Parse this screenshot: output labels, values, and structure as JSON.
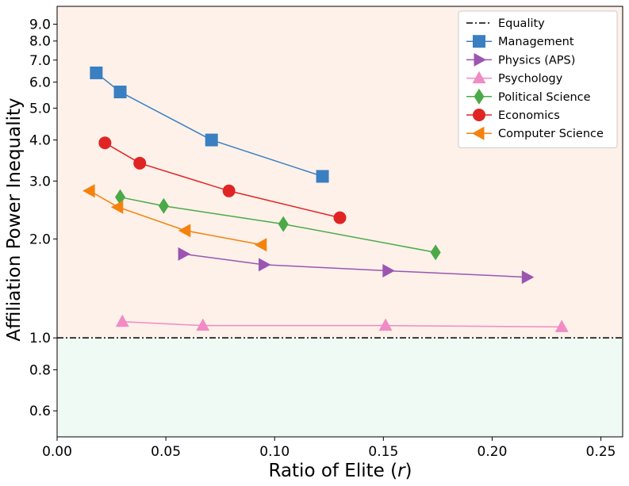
{
  "chart_data": {
    "type": "line",
    "xlabel": "Ratio of Elite (r)",
    "xlabel_main": "Ratio of Elite (",
    "xlabel_var": "r",
    "xlabel_end": ")",
    "ylabel": "Affiliation Power Inequality",
    "xlim": [
      0.0,
      0.26
    ],
    "ylim": [
      0.5,
      10.2
    ],
    "yscale": "log",
    "x_ticks": [
      0.0,
      0.05,
      0.1,
      0.15,
      0.2,
      0.25
    ],
    "x_tick_labels": [
      "0.00",
      "0.05",
      "0.10",
      "0.15",
      "0.20",
      "0.25"
    ],
    "y_ticks": [
      0.6,
      0.8,
      1.0,
      2.0,
      3.0,
      4.0,
      5.0,
      6.0,
      7.0,
      8.0,
      9.0
    ],
    "y_tick_labels": [
      "0.6",
      "0.8",
      "1.0",
      "2.0",
      "3.0",
      "4.0",
      "5.0",
      "6.0",
      "7.0",
      "8.0",
      "9.0"
    ],
    "regions": [
      {
        "name": "above-equality",
        "from": 1.0,
        "to": 10.2,
        "color": "#fdf1ea"
      },
      {
        "name": "below-equality",
        "from": 0.5,
        "to": 1.0,
        "color": "#f0faf4"
      }
    ],
    "reference_line": {
      "name": "Equality",
      "y": 1.0,
      "style": "dashdot",
      "color": "#000000"
    },
    "legend_position": "top-right",
    "series": [
      {
        "name": "Management",
        "color": "#3a7fc1",
        "marker": "square",
        "x": [
          0.018,
          0.029,
          0.071,
          0.122
        ],
        "y": [
          6.4,
          5.6,
          4.0,
          3.1
        ]
      },
      {
        "name": "Physics (APS)",
        "color": "#9b55b0",
        "marker": "triangle-right",
        "x": [
          0.058,
          0.095,
          0.152,
          0.216
        ],
        "y": [
          1.8,
          1.67,
          1.6,
          1.53
        ]
      },
      {
        "name": "Psychology",
        "color": "#f18bc4",
        "marker": "triangle-up",
        "x": [
          0.03,
          0.067,
          0.151,
          0.232
        ],
        "y": [
          1.12,
          1.09,
          1.09,
          1.08
        ]
      },
      {
        "name": "Political Science",
        "color": "#4aaa48",
        "marker": "diamond",
        "x": [
          0.029,
          0.049,
          0.104,
          0.174
        ],
        "y": [
          2.68,
          2.52,
          2.22,
          1.82
        ]
      },
      {
        "name": "Economics",
        "color": "#e02424",
        "marker": "circle",
        "x": [
          0.022,
          0.038,
          0.079,
          0.13
        ],
        "y": [
          3.92,
          3.4,
          2.8,
          2.32
        ]
      },
      {
        "name": "Computer Science",
        "color": "#f5820d",
        "marker": "triangle-left",
        "x": [
          0.015,
          0.028,
          0.059,
          0.094
        ],
        "y": [
          2.8,
          2.5,
          2.12,
          1.92
        ]
      }
    ]
  }
}
